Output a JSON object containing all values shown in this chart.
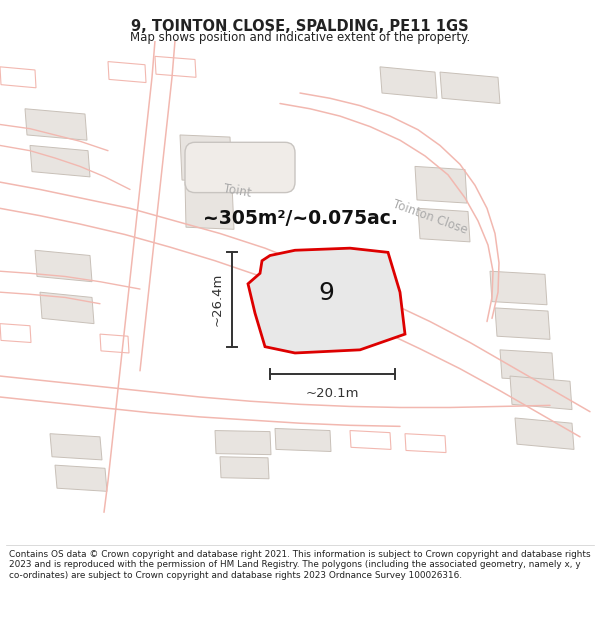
{
  "title": "9, TOINTON CLOSE, SPALDING, PE11 1GS",
  "subtitle": "Map shows position and indicative extent of the property.",
  "area_text": "~305m²/~0.075ac.",
  "plot_label": "9",
  "dim_width": "~20.1m",
  "dim_height": "~26.4m",
  "street_label_left": "Toint",
  "street_label_right": "Tointon Close",
  "footer": "Contains OS data © Crown copyright and database right 2021. This information is subject to Crown copyright and database rights 2023 and is reproduced with the permission of HM Land Registry. The polygons (including the associated geometry, namely x, y co-ordinates) are subject to Crown copyright and database rights 2023 Ordnance Survey 100026316.",
  "map_bg": "#ffffff",
  "plot_fill": "#e8e8e8",
  "plot_border": "#dd0000",
  "road_color": "#f2b8b0",
  "building_fill": "#e8e4e0",
  "building_edge": "#c8c0b8",
  "text_color": "#222222",
  "dim_color": "#333333",
  "street_color": "#aaaaaa"
}
